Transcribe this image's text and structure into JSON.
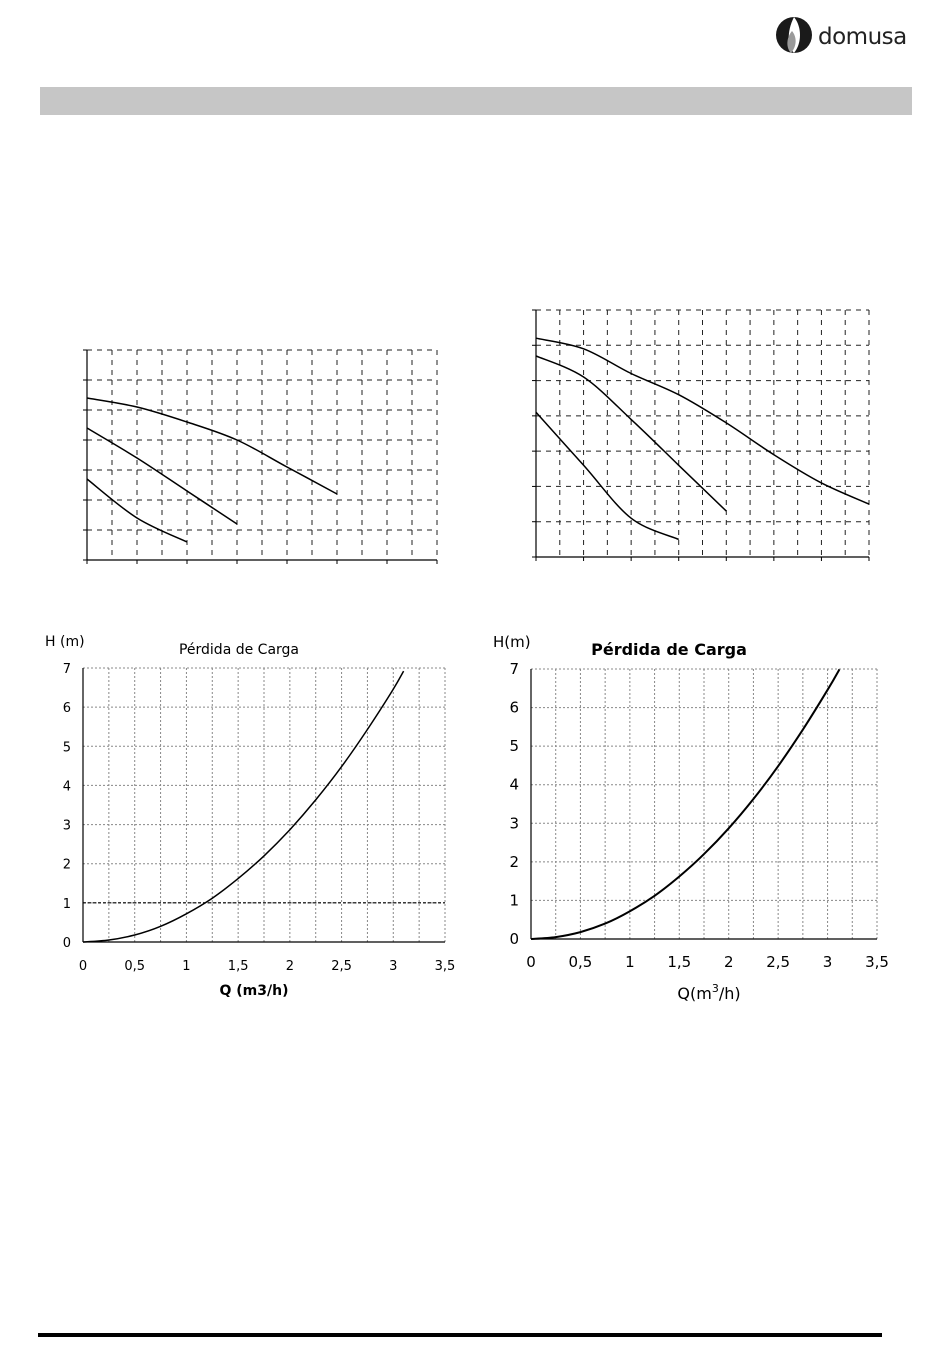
{
  "logo": {
    "text": "domusa"
  },
  "chart_data": [
    {
      "type": "line",
      "title": "",
      "xlabel": "",
      "ylabel": "",
      "grid": true,
      "xlim": [
        0,
        3.5
      ],
      "ylim": [
        0,
        7
      ],
      "series": [
        {
          "x": [
            0,
            0.5,
            1.0,
            1.5,
            2.0,
            2.5
          ],
          "values": [
            5.4,
            5.1,
            4.6,
            4.0,
            3.1,
            2.2
          ]
        },
        {
          "x": [
            0,
            0.5,
            1.0,
            1.5
          ],
          "values": [
            4.4,
            3.4,
            2.3,
            1.2
          ]
        },
        {
          "x": [
            0,
            0.5,
            1.0
          ],
          "values": [
            2.7,
            1.4,
            0.6
          ]
        }
      ]
    },
    {
      "type": "line",
      "title": "",
      "xlabel": "",
      "ylabel": "",
      "grid": true,
      "xlim": [
        0,
        3.5
      ],
      "ylim": [
        0,
        7
      ],
      "series": [
        {
          "x": [
            0,
            0.5,
            1.0,
            1.5,
            2.0,
            2.5,
            3.0,
            3.5
          ],
          "values": [
            6.2,
            5.9,
            5.2,
            4.6,
            3.8,
            2.9,
            2.1,
            1.5
          ]
        },
        {
          "x": [
            0,
            0.5,
            1.0,
            1.5,
            2.0
          ],
          "values": [
            5.7,
            5.1,
            3.9,
            2.6,
            1.3
          ]
        },
        {
          "x": [
            0,
            0.5,
            1.0,
            1.5
          ],
          "values": [
            4.1,
            2.6,
            1.1,
            0.5
          ]
        }
      ]
    },
    {
      "type": "line",
      "title": "Pérdida de Carga",
      "ylabel": "H (m)",
      "xlabel": "Q (m3/h)",
      "grid": true,
      "xlim": [
        0,
        3.5
      ],
      "ylim": [
        0,
        7
      ],
      "xticks": [
        "0",
        "0,5",
        "1",
        "1,5",
        "2",
        "2,5",
        "3",
        "3,5"
      ],
      "yticks": [
        "0",
        "1",
        "2",
        "3",
        "4",
        "5",
        "6",
        "7"
      ],
      "series": [
        {
          "x": [
            0,
            0.25,
            0.5,
            0.75,
            1.0,
            1.25,
            1.5,
            1.75,
            2.0,
            2.25,
            2.5,
            2.75,
            3.0,
            3.1
          ],
          "values": [
            0,
            0.05,
            0.18,
            0.4,
            0.72,
            1.12,
            1.62,
            2.2,
            2.87,
            3.63,
            4.48,
            5.43,
            6.46,
            6.92
          ]
        }
      ]
    },
    {
      "type": "line",
      "title": "Pérdida de Carga",
      "ylabel": "H(m)",
      "xlabel_parts": [
        "Q(m",
        "3",
        "/h)"
      ],
      "grid": true,
      "xlim": [
        0,
        3.5
      ],
      "ylim": [
        0,
        7
      ],
      "xticks": [
        "0",
        "0,5",
        "1",
        "1,5",
        "2",
        "2,5",
        "3",
        "3,5"
      ],
      "yticks": [
        "0",
        "1",
        "2",
        "3",
        "4",
        "5",
        "6",
        "7"
      ],
      "series": [
        {
          "x": [
            0,
            0.25,
            0.5,
            0.75,
            1.0,
            1.25,
            1.5,
            1.75,
            2.0,
            2.25,
            2.5,
            2.75,
            3.0,
            3.12
          ],
          "values": [
            0,
            0.05,
            0.18,
            0.4,
            0.72,
            1.12,
            1.62,
            2.2,
            2.87,
            3.63,
            4.48,
            5.43,
            6.46,
            6.99
          ]
        }
      ]
    }
  ]
}
